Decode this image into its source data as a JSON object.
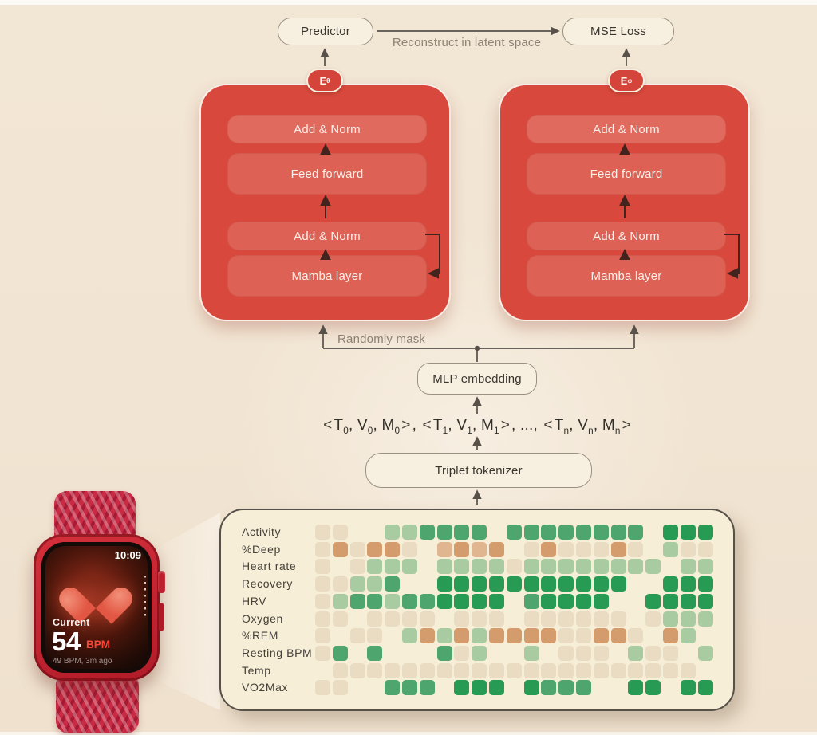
{
  "colors": {
    "background": "#F1E4D2",
    "encoder_red": "#D8483C",
    "layer_red": "#DD6155",
    "badge_red": "#D5443A",
    "flow_box_cream": "#F7F0E1",
    "arrow_gray": "#57514A",
    "arrow_dark": "#42231D",
    "annotation_gray": "#8D8376",
    "panel_cream": "#F6EED6",
    "watch_red": "#C2212E",
    "bpm_red": "#FB4438"
  },
  "flow": {
    "predictor": "Predictor",
    "mse_loss": "MSE Loss",
    "reconstruct": "Reconstruct in latent space",
    "randomly_mask": "Randomly mask",
    "mlp_embedding": "MLP embedding",
    "triplet_tokenizer": "Triplet tokenizer"
  },
  "encoders": [
    {
      "badge": {
        "base": "E",
        "sub": "θ"
      },
      "layers": [
        "Add & Norm",
        "Feed forward",
        "Add & Norm",
        "Mamba layer"
      ]
    },
    {
      "badge": {
        "base": "E",
        "sub": "φ"
      },
      "layers": [
        "Add & Norm",
        "Feed forward",
        "Add & Norm",
        "Mamba layer"
      ]
    }
  ],
  "tokens": {
    "groups": [
      [
        [
          "T",
          "0"
        ],
        [
          "V",
          "0"
        ],
        [
          "M",
          "0"
        ]
      ],
      [
        [
          "T",
          "1"
        ],
        [
          "V",
          "1"
        ],
        [
          "M",
          "1"
        ]
      ],
      "...",
      [
        [
          "T",
          "n"
        ],
        [
          "V",
          "n"
        ],
        [
          "M",
          "n"
        ]
      ]
    ],
    "open_bracket": "<",
    "close_bracket": ">"
  },
  "heatmap": {
    "palette": {
      "b": "#EADCC3",
      "o": "#D49C6D",
      "l": "#DFB690",
      "a": "#A8CBA1",
      "m": "#4FA56E",
      "d": "#279A54"
    },
    "rows": [
      {
        "label": "Activity",
        "cells": "bb00aammmm0mmmmmmmm0ddd0"
      },
      {
        "label": "%Deep",
        "cells": "boboob0lolo0bobbbob0abb0"
      },
      {
        "label": "Heart rate",
        "cells": "b0baaa0aaaabaaaaaaaa0aa0"
      },
      {
        "label": "Recovery",
        "cells": "bbaam00ddddddddddd00ddd0"
      },
      {
        "label": "HRV",
        "cells": "bammammdddd0mdddd00dddd0"
      },
      {
        "label": "Oxygen",
        "cells": "bb0bbbb0bbb0bbbbbb0baaa0"
      },
      {
        "label": "%REM",
        "cells": "b0bb0aoaoaoooobboob0oa00"
      },
      {
        "label": "Resting BPM",
        "cells": "bm0m000mba00a0bbb0abb0a0"
      },
      {
        "label": "Temp",
        "cells": "0bbbbbbbbbbbbbbbbbbbbb00"
      },
      {
        "label": "VO2Max",
        "cells": "bb00mmm0ddd0dmmm00dd0dd0"
      }
    ]
  },
  "watch": {
    "time": "10:09",
    "current_label": "Current",
    "bpm_value": "54",
    "bpm_unit": "BPM",
    "history": "49 BPM, 3m ago"
  }
}
